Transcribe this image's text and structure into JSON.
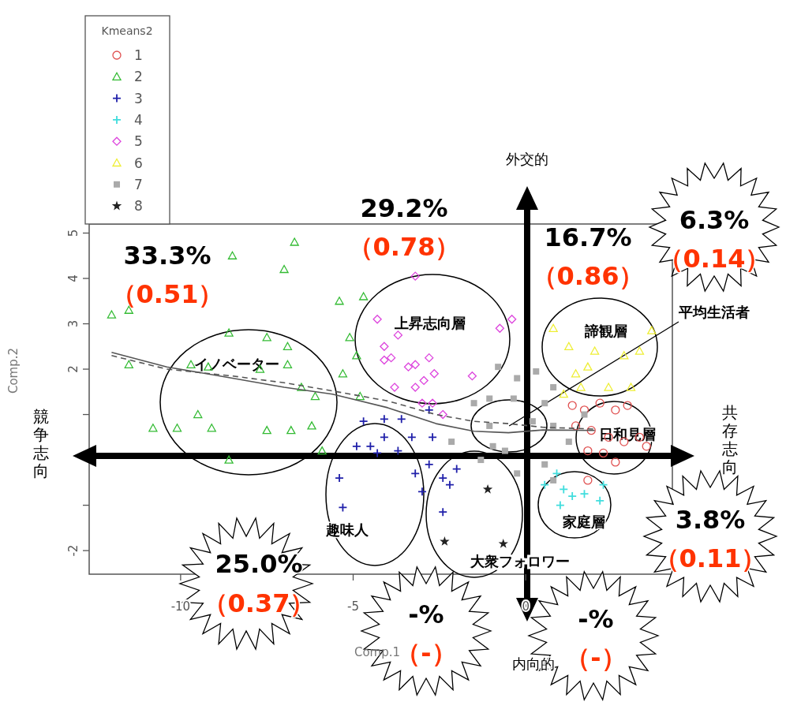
{
  "chart_data": {
    "type": "scatter",
    "xlabel": "Comp.1",
    "ylabel": "Comp.2",
    "legend_title": "Kmeans2",
    "legend": "top left",
    "xlim": [
      -12.65,
      4.25
    ],
    "ylim": [
      -2.52,
      5.2
    ],
    "xticks": [
      -10,
      -5,
      0
    ],
    "yticks": [
      -2,
      {
        "value": -1,
        "label": null
      },
      {
        "value": 0,
        "label": null
      },
      {
        "value": 1,
        "label": null
      },
      2,
      3,
      4,
      5
    ],
    "series": [
      {
        "name": "1",
        "color": "#e05050",
        "marker": "circle",
        "x": [
          1.35,
          1.7,
          2.15,
          2.6,
          2.95,
          1.45,
          1.9,
          2.4,
          2.85,
          3.3,
          1.8,
          2.25,
          2.6,
          3.5,
          1.8
        ],
        "values": [
          1.2,
          1.1,
          1.25,
          1.1,
          1.2,
          0.75,
          0.65,
          0.5,
          0.4,
          0.5,
          0.2,
          0.15,
          -0.05,
          0.3,
          -0.45
        ]
      },
      {
        "name": "2",
        "color": "#33bb33",
        "marker": "triangle",
        "x": [
          -12.0,
          -11.5,
          -10.8,
          -8.5,
          -6.7,
          -7.0,
          -5.4,
          -4.7,
          -5.1,
          -8.6,
          -7.5,
          -6.9,
          -6.9,
          -7.7,
          -9.5,
          -10.1,
          -9.1,
          -8.6,
          -6.5,
          -6.1,
          -6.2,
          -6.8,
          -7.5,
          -5.9,
          -5.3,
          -4.9,
          -4.8,
          -9.7,
          -11.5,
          -9.2
        ],
        "values": [
          3.2,
          2.1,
          0.7,
          4.5,
          4.8,
          4.2,
          3.5,
          3.6,
          2.7,
          2.8,
          2.7,
          2.5,
          2.1,
          2.0,
          1.0,
          0.7,
          0.7,
          0.0,
          1.6,
          1.4,
          0.75,
          0.65,
          0.65,
          0.2,
          1.9,
          2.3,
          1.4,
          2.1,
          3.3,
          2.05
        ]
      },
      {
        "name": "3",
        "color": "#2020aa",
        "marker": "cross",
        "x": [
          -4.1,
          -3.6,
          -2.8,
          -4.1,
          -4.9,
          -4.5,
          -3.3,
          -2.7,
          -5.4,
          -4.3,
          -3.7,
          -3.2,
          -2.8,
          -2.4,
          -2.2,
          -2.0,
          -3.0,
          -5.3,
          -2.4,
          -4.7
        ],
        "values": [
          0.9,
          0.9,
          1.1,
          0.5,
          0.3,
          0.3,
          0.5,
          0.5,
          -0.4,
          0.15,
          0.2,
          -0.3,
          -0.1,
          -0.4,
          -0.55,
          -0.2,
          -0.7,
          -1.05,
          -1.15,
          0.85
        ]
      },
      {
        "name": "4",
        "color": "#40dddd",
        "marker": "cross",
        "x": [
          0.9,
          1.1,
          1.35,
          1.7,
          2.15,
          1.0,
          0.55,
          2.25
        ],
        "values": [
          -0.3,
          -0.65,
          -0.8,
          -0.75,
          -0.9,
          -1.0,
          -0.55,
          -0.55
        ]
      },
      {
        "name": "5",
        "color": "#dd44dd",
        "marker": "diamond",
        "x": [
          -4.3,
          -3.7,
          -4.1,
          -4.1,
          -3.9,
          -3.4,
          -3.2,
          -2.8,
          -3.8,
          -3.2,
          -2.95,
          -2.65,
          -1.55,
          -0.75,
          -0.4,
          -2.4,
          -2.7,
          -3.0,
          -3.2
        ],
        "values": [
          3.1,
          2.75,
          2.5,
          2.2,
          2.25,
          2.05,
          2.1,
          2.25,
          1.6,
          1.6,
          1.75,
          1.9,
          1.85,
          2.9,
          3.1,
          1.0,
          1.25,
          1.25,
          4.05
        ]
      },
      {
        "name": "6",
        "color": "#eeee33",
        "marker": "triangle",
        "x": [
          0.8,
          1.25,
          2.0,
          2.85,
          3.3,
          1.45,
          1.8,
          2.4,
          3.05,
          1.1,
          1.6,
          3.65
        ],
        "values": [
          2.9,
          2.5,
          2.4,
          2.3,
          2.4,
          1.9,
          2.05,
          1.6,
          1.6,
          1.45,
          1.6,
          2.85
        ]
      },
      {
        "name": "7",
        "color": "#aaaaaa",
        "marker": "square",
        "x": [
          -0.8,
          -0.25,
          0.3,
          0.8,
          -0.35,
          0.55,
          -1.05,
          -0.95,
          -0.6,
          0.8,
          -1.05,
          -2.15,
          -0.25,
          0.55,
          0.8,
          -1.3,
          0.2,
          1.25,
          -1.5,
          1.7
        ],
        "values": [
          2.05,
          1.8,
          1.95,
          1.6,
          1.35,
          1.25,
          0.75,
          0.3,
          0.2,
          0.75,
          1.35,
          0.4,
          -0.3,
          -0.1,
          -0.45,
          0.0,
          0.85,
          0.4,
          1.25,
          1.0
        ]
      },
      {
        "name": "8",
        "color": "#222222",
        "marker": "star",
        "x": [
          -1.1,
          -2.35,
          -0.65
        ],
        "values": [
          -0.65,
          -1.8,
          -1.85
        ]
      },
      {
        "type": "line",
        "color": "#555555",
        "line_style": "solid",
        "x": [
          -12.0,
          -10.4,
          -8.5,
          -7.0,
          -5.6,
          -4.0,
          -2.6,
          -1.5,
          -0.5,
          0.5,
          2.0
        ],
        "values": [
          2.37,
          2.05,
          1.8,
          1.6,
          1.45,
          1.15,
          0.8,
          0.63,
          0.6,
          0.66,
          0.65
        ]
      },
      {
        "type": "line",
        "color": "#555555",
        "line_style": "dashed",
        "x": [
          -12.0,
          -10.4,
          -8.5,
          -7.0,
          -5.6,
          -4.0,
          -2.6,
          -1.5,
          -0.5,
          0.5,
          2.0
        ],
        "values": [
          2.3,
          2.0,
          1.85,
          1.7,
          1.52,
          1.3,
          1.0,
          0.85,
          0.8,
          0.72,
          0.68
        ]
      }
    ],
    "annotations": [
      "外交的",
      "内向的",
      "競争志向",
      "共存志向",
      "イノベーター",
      "上昇志向層",
      "諦観層",
      {
        "text": "平均生活者",
        "x": -0.48,
        "y": 0.75
      },
      "日和見層",
      "家庭層",
      "趣味人",
      "大衆フォロワー",
      "33.3%",
      "（0.51）",
      "29.2%",
      "（0.78）",
      "16.7%",
      "（0.86）",
      "6.3%",
      "（0.14）",
      "3.8%",
      "（0.11）",
      "25.0%",
      "（0.37）",
      "-%",
      "（-）",
      "-%",
      "（-）"
    ]
  }
}
